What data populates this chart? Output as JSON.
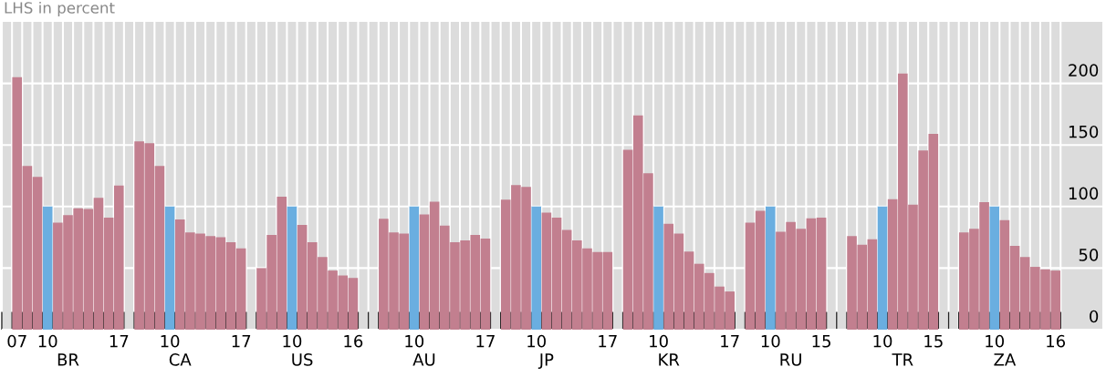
{
  "chart_data": {
    "type": "bar",
    "ylabel": "LHS in percent",
    "categories": [
      null,
      "07",
      null,
      null,
      "10",
      null,
      "\nBR",
      null,
      null,
      null,
      null,
      "17",
      null,
      null,
      null,
      null,
      "10",
      "\nCA",
      null,
      null,
      null,
      null,
      null,
      "17",
      null,
      null,
      null,
      null,
      "10",
      "\nUS",
      null,
      null,
      null,
      null,
      "16",
      null,
      null,
      null,
      null,
      null,
      "10",
      "\nAU",
      null,
      null,
      null,
      null,
      null,
      "17",
      null,
      null,
      null,
      null,
      "10",
      "\nJP",
      null,
      null,
      null,
      null,
      null,
      "17",
      null,
      null,
      null,
      null,
      "10",
      "\nKR",
      null,
      null,
      null,
      null,
      null,
      "17",
      null,
      null,
      null,
      "10",
      null,
      "\nRU",
      null,
      null,
      "15",
      null,
      null,
      null,
      null,
      null,
      "10",
      null,
      "\nTR",
      null,
      null,
      "15",
      null,
      null,
      null,
      null,
      null,
      "10",
      "\nZA",
      null,
      null,
      null,
      null,
      "16"
    ],
    "values": [
      null,
      205,
      133,
      124,
      100,
      87,
      93,
      98.5,
      98,
      107,
      91,
      117,
      null,
      153,
      151.5,
      133,
      100,
      89.5,
      79,
      78,
      76,
      75,
      71,
      66,
      null,
      50,
      77,
      108,
      100,
      85,
      71,
      59,
      48,
      44,
      42,
      null,
      null,
      90,
      79,
      78,
      100,
      93.5,
      104,
      84.5,
      71,
      72.5,
      77,
      74,
      null,
      105.5,
      117.5,
      116,
      100,
      95,
      91,
      81,
      72.5,
      66,
      63,
      63,
      null,
      146,
      174,
      127,
      100,
      86,
      78,
      63.5,
      53.5,
      46,
      35,
      31,
      null,
      87,
      96.5,
      100,
      79.5,
      87.5,
      82,
      90.5,
      91,
      null,
      null,
      76,
      69,
      73.5,
      100,
      106,
      208,
      101.5,
      145.5,
      159,
      null,
      null,
      79,
      82,
      103.5,
      100,
      89,
      68,
      59,
      51,
      49,
      48
    ],
    "colors": [
      "#c27f8f",
      "#c27f8f",
      "#c27f8f",
      "#c27f8f",
      "#6aaee0",
      "#c27f8f",
      "#c27f8f",
      "#c27f8f",
      "#c27f8f",
      "#c27f8f",
      "#c27f8f",
      "#c27f8f",
      "#c27f8f",
      "#c27f8f",
      "#c27f8f",
      "#c27f8f",
      "#6aaee0",
      "#c27f8f",
      "#c27f8f",
      "#c27f8f",
      "#c27f8f",
      "#c27f8f",
      "#c27f8f",
      "#c27f8f",
      "#c27f8f",
      "#c27f8f",
      "#c27f8f",
      "#c27f8f",
      "#6aaee0",
      "#c27f8f",
      "#c27f8f",
      "#c27f8f",
      "#c27f8f",
      "#c27f8f",
      "#c27f8f",
      "#c27f8f",
      "#c27f8f",
      "#c27f8f",
      "#c27f8f",
      "#c27f8f",
      "#6aaee0",
      "#c27f8f",
      "#c27f8f",
      "#c27f8f",
      "#c27f8f",
      "#c27f8f",
      "#c27f8f",
      "#c27f8f",
      "#c27f8f",
      "#c27f8f",
      "#c27f8f",
      "#c27f8f",
      "#6aaee0",
      "#c27f8f",
      "#c27f8f",
      "#c27f8f",
      "#c27f8f",
      "#c27f8f",
      "#c27f8f",
      "#c27f8f",
      "#c27f8f",
      "#c27f8f",
      "#c27f8f",
      "#c27f8f",
      "#6aaee0",
      "#c27f8f",
      "#c27f8f",
      "#c27f8f",
      "#c27f8f",
      "#c27f8f",
      "#c27f8f",
      "#c27f8f",
      "#c27f8f",
      "#c27f8f",
      "#c27f8f",
      "#6aaee0",
      "#c27f8f",
      "#c27f8f",
      "#c27f8f",
      "#c27f8f",
      "#c27f8f",
      "#c27f8f",
      "#c27f8f",
      "#c27f8f",
      "#c27f8f",
      "#c27f8f",
      "#6aaee0",
      "#c27f8f",
      "#c27f8f",
      "#c27f8f",
      "#c27f8f",
      "#c27f8f",
      "#c27f8f",
      "#c27f8f",
      "#c27f8f",
      "#c27f8f",
      "#c27f8f",
      "#6aaee0",
      "#c27f8f",
      "#c27f8f",
      "#c27f8f",
      "#c27f8f",
      "#c27f8f",
      "#c27f8f"
    ],
    "ylim": [
      0,
      250
    ],
    "yticks": [
      0,
      50,
      100,
      150,
      200
    ],
    "grid": true
  }
}
